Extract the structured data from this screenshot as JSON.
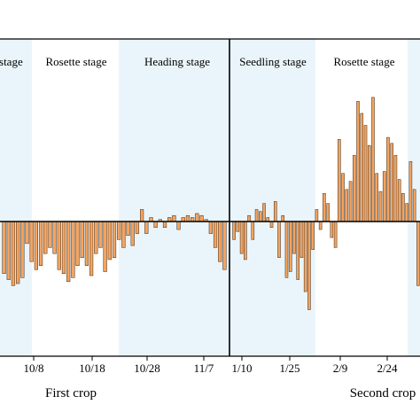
{
  "chart_data": {
    "type": "bar",
    "title": "",
    "xlabel": "",
    "ylabel": "",
    "zero_line": true,
    "bar_color": "#f4a460",
    "bar_stroke": "#3a2a1a",
    "band_color": "#eaf5fb",
    "crops": [
      {
        "name": "First crop"
      },
      {
        "name": "Second crop"
      }
    ],
    "stages": [
      {
        "name": "Seedling stage",
        "crop": 1,
        "shaded": true
      },
      {
        "name": "Rosette stage",
        "crop": 1,
        "shaded": false
      },
      {
        "name": "Heading stage",
        "crop": 1,
        "shaded": true
      },
      {
        "name": "Seedling stage",
        "crop": 2,
        "shaded": true
      },
      {
        "name": "Rosette stage",
        "crop": 2,
        "shaded": false
      },
      {
        "name": "",
        "crop": 2,
        "shaded": true
      }
    ],
    "x_ticks": [
      "10/8",
      "10/18",
      "10/28",
      "11/7",
      "1/10",
      "1/25",
      "2/9",
      "2/24"
    ],
    "series": [
      {
        "crop": "First crop",
        "values": [
          -2.6,
          -2.9,
          -3.2,
          -3.1,
          -2.8,
          -1.1,
          -2.0,
          -2.4,
          -2.2,
          -1.6,
          -1.3,
          -1.6,
          -2.4,
          -2.6,
          -3.0,
          -2.8,
          -2.2,
          -1.8,
          -2.2,
          -2.7,
          -1.6,
          -1.3,
          -2.5,
          -1.9,
          -1.8,
          -0.9,
          -1.3,
          -0.7,
          -1.2,
          -0.6,
          0.6,
          -0.6,
          0.2,
          -0.3,
          0.1,
          -0.3,
          0.2,
          0.3,
          -0.4,
          0.2,
          0.3,
          0.2,
          0.4,
          0.3,
          0.1,
          -0.6,
          -1.3,
          -2.0,
          -2.4
        ]
      },
      {
        "crop": "Second crop",
        "values": [
          -0.9,
          -0.5,
          -1.6,
          -1.9,
          0.3,
          -0.9,
          0.6,
          0.5,
          0.9,
          0.2,
          -0.3,
          1.0,
          -1.8,
          0.3,
          -2.8,
          -2.5,
          -1.6,
          -2.9,
          -1.8,
          -3.5,
          -4.4,
          -1.4,
          0.6,
          -0.4,
          1.4,
          0.9,
          -0.8,
          -1.3,
          4.1,
          2.4,
          1.6,
          2.0,
          3.3,
          6.0,
          5.4,
          4.8,
          3.8,
          6.2,
          2.4,
          1.5,
          2.5,
          4.2,
          3.9,
          3.3,
          2.1,
          1.4,
          0.9,
          3.0,
          1.6,
          -3.2
        ]
      }
    ]
  }
}
